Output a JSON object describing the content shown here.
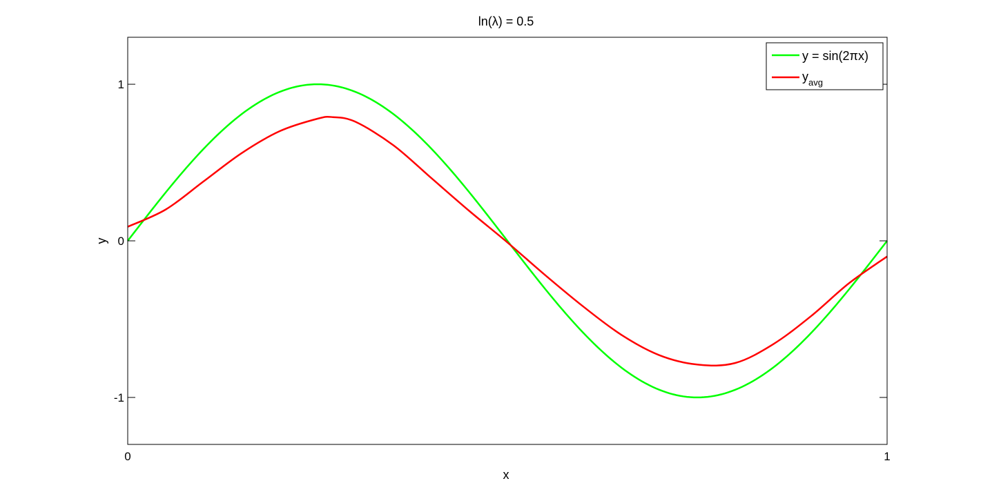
{
  "chart_data": {
    "type": "line",
    "title": "ln(λ) = 0.5",
    "xlabel": "x",
    "ylabel": "y",
    "xlim": [
      0,
      1
    ],
    "ylim": [
      -1.3,
      1.3
    ],
    "xticks": [
      0,
      1
    ],
    "yticks": [
      -1,
      0,
      1
    ],
    "xtick_labels": [
      "0",
      "1"
    ],
    "ytick_labels": [
      "-1",
      "0",
      "1"
    ],
    "grid": false,
    "legend": {
      "placement": "top-right",
      "entries": [
        {
          "text": "y = sin(2πx)",
          "color": "#00ff00"
        },
        {
          "text": "y",
          "subscript": "avg",
          "color": "#ff0000"
        }
      ]
    },
    "series": [
      {
        "name": "y = sin(2πx)",
        "color": "#00ff00",
        "function": "sin(2πx)"
      },
      {
        "name": "y_avg",
        "color": "#ff0000",
        "x": [
          0,
          0.05,
          0.1,
          0.15,
          0.2,
          0.25,
          0.27,
          0.3,
          0.35,
          0.4,
          0.45,
          0.5,
          0.55,
          0.6,
          0.65,
          0.7,
          0.75,
          0.8,
          0.85,
          0.9,
          0.95,
          1.0
        ],
        "y": [
          0.09,
          0.2,
          0.38,
          0.56,
          0.7,
          0.78,
          0.79,
          0.76,
          0.61,
          0.4,
          0.19,
          -0.01,
          -0.22,
          -0.42,
          -0.6,
          -0.73,
          -0.79,
          -0.78,
          -0.66,
          -0.48,
          -0.27,
          -0.1
        ]
      }
    ]
  }
}
